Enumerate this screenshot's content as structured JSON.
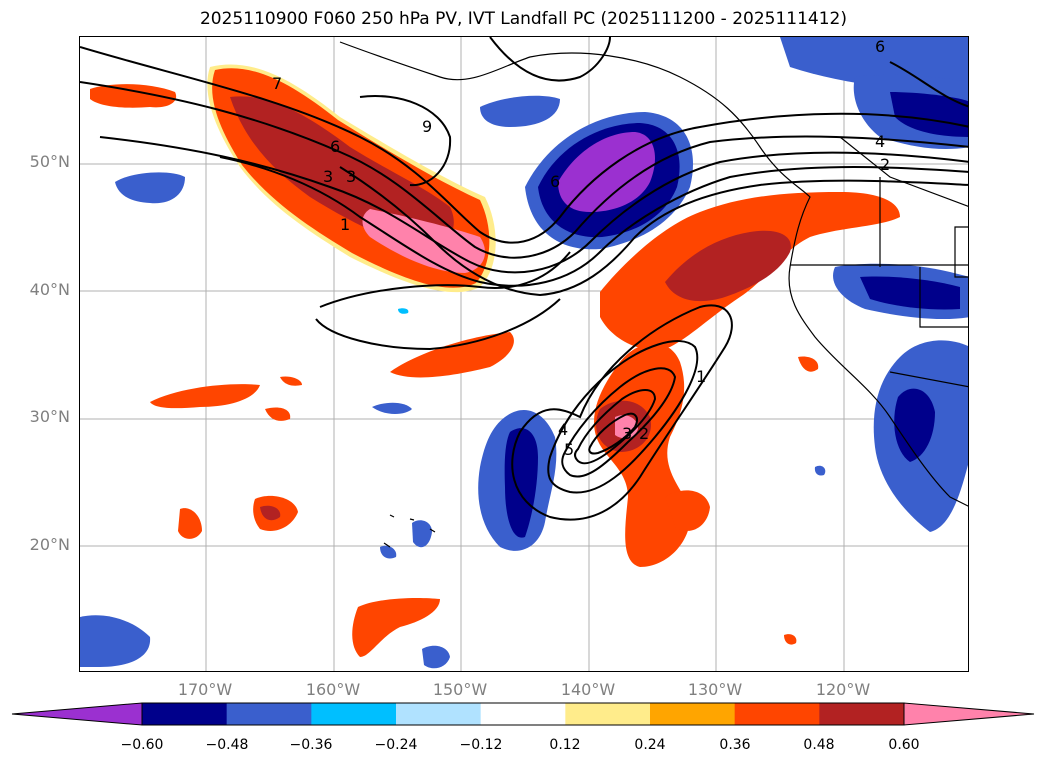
{
  "title": "2025110900 F060 250 hPa PV, IVT Landfall PC (2025111200 - 2025111412)",
  "lat_labels": [
    "50°N",
    "40°N",
    "30°N",
    "20°N"
  ],
  "lon_labels": [
    "170°W",
    "160°W",
    "150°W",
    "140°W",
    "130°W",
    "120°W"
  ],
  "contour_labels": [
    "7",
    "6",
    "3",
    "3",
    "1",
    "9",
    "6",
    "6",
    "4",
    "2",
    "4",
    "5",
    "3",
    "2",
    "1"
  ],
  "colorbar": {
    "ticks": [
      "−0.60",
      "−0.48",
      "−0.36",
      "−0.24",
      "−0.12",
      "0.12",
      "0.24",
      "0.36",
      "0.48",
      "0.60"
    ],
    "colors": [
      "#9b30d0",
      "#00008b",
      "#3a5fcd",
      "#00bfff",
      "#b0e2ff",
      "#ffffff",
      "#ffec8b",
      "#ffa500",
      "#ff4500",
      "#b22222",
      "#ff82ab"
    ]
  }
}
